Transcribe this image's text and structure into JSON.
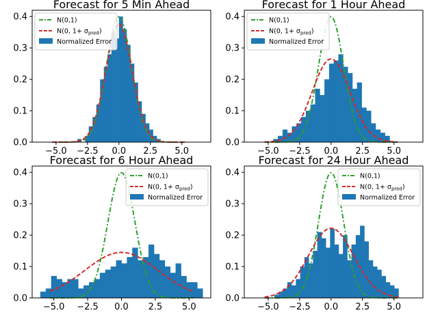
{
  "colors": {
    "hist": "#1f77b4",
    "standard_normal": "#2ca02c",
    "predicted_normal": "#d62728",
    "legend_border": "#cccccc"
  },
  "legend_labels": {
    "standard_normal": "N(0,1)",
    "predicted_normal": "N(0, 1+ σ_pred)",
    "histogram": "Normalized Error"
  },
  "chart_data": [
    {
      "type": "bar",
      "title": "Forecast for 5 Min Ahead",
      "xlim": [
        -6.9,
        7.3
      ],
      "ylim": [
        0,
        0.42
      ],
      "xticks": [
        -5.0,
        -2.5,
        0.0,
        2.5,
        5.0
      ],
      "xtick_labels": [
        "−5.0",
        "−2.5",
        "0.0",
        "2.5",
        "5.0"
      ],
      "yticks": [
        0.0,
        0.1,
        0.2,
        0.3,
        0.4
      ],
      "ytick_labels": [
        "0.0",
        "0.1",
        "0.2",
        "0.3",
        "0.4"
      ],
      "legend_position": "top-left",
      "bin_start": -3.3,
      "bin_width": 0.3,
      "values": [
        0.01,
        0.0,
        0.02,
        0.05,
        0.08,
        0.12,
        0.2,
        0.24,
        0.28,
        0.35,
        0.33,
        0.4,
        0.36,
        0.31,
        0.25,
        0.19,
        0.13,
        0.09,
        0.06,
        0.04,
        0.02,
        0.01
      ],
      "curves": [
        {
          "key": "standard_normal",
          "sigma": 1.0,
          "amplitude": 0.399
        },
        {
          "key": "predicted_normal",
          "sigma": 1.05,
          "amplitude": 0.375
        }
      ]
    },
    {
      "type": "bar",
      "title": "Forecast for 1 Hour Ahead",
      "xlim": [
        -6.9,
        7.3
      ],
      "ylim": [
        0,
        0.42
      ],
      "xticks": [
        -5.0,
        -2.5,
        0.0,
        2.5,
        5.0
      ],
      "xtick_labels": [
        "−5.0",
        "−2.5",
        "0.0",
        "2.5",
        "5.0"
      ],
      "yticks": [
        0.0,
        0.1,
        0.2,
        0.3,
        0.4
      ],
      "ytick_labels": [
        "0.0",
        "0.1",
        "0.2",
        "0.3",
        "0.4"
      ],
      "legend_position": "top-left",
      "bin_start": -4.6,
      "bin_width": 0.37,
      "values": [
        0.01,
        0.02,
        0.04,
        0.03,
        0.05,
        0.06,
        0.08,
        0.1,
        0.12,
        0.17,
        0.15,
        0.2,
        0.25,
        0.26,
        0.28,
        0.24,
        0.22,
        0.17,
        0.19,
        0.11,
        0.1,
        0.06,
        0.04,
        0.03,
        0.02
      ],
      "curves": [
        {
          "key": "standard_normal",
          "sigma": 1.0,
          "amplitude": 0.399
        },
        {
          "key": "predicted_normal",
          "sigma": 1.5,
          "amplitude": 0.265
        }
      ]
    },
    {
      "type": "bar",
      "title": "Forecast for 6 Hour Ahead",
      "xlim": [
        -6.6,
        6.6
      ],
      "ylim": [
        0,
        0.42
      ],
      "xticks": [
        -5.0,
        -2.5,
        0.0,
        2.5,
        5.0
      ],
      "xtick_labels": [
        "−5.0",
        "−2.5",
        "0.0",
        "2.5",
        "5.0"
      ],
      "yticks": [
        0.0,
        0.1,
        0.2,
        0.3,
        0.4
      ],
      "ytick_labels": [
        "0.0",
        "0.1",
        "0.2",
        "0.3",
        "0.4"
      ],
      "legend_position": "top-right",
      "bin_start": -6.0,
      "bin_width": 0.4,
      "values": [
        0.02,
        0.03,
        0.07,
        0.06,
        0.05,
        0.06,
        0.06,
        0.03,
        0.04,
        0.05,
        0.06,
        0.08,
        0.09,
        0.1,
        0.12,
        0.11,
        0.13,
        0.16,
        0.12,
        0.13,
        0.17,
        0.14,
        0.12,
        0.1,
        0.08,
        0.11,
        0.07,
        0.05,
        0.05,
        0.03
      ],
      "curves": [
        {
          "key": "standard_normal",
          "sigma": 1.0,
          "amplitude": 0.399
        },
        {
          "key": "predicted_normal",
          "sigma": 2.7,
          "amplitude": 0.145
        }
      ]
    },
    {
      "type": "bar",
      "title": "Forecast for 24 Hour Ahead",
      "xlim": [
        -6.9,
        7.3
      ],
      "ylim": [
        0,
        0.42
      ],
      "xticks": [
        -5.0,
        -2.5,
        0.0,
        2.5,
        5.0
      ],
      "xtick_labels": [
        "−5.0",
        "−2.5",
        "0.0",
        "2.5",
        "5.0"
      ],
      "yticks": [
        0.0,
        0.1,
        0.2,
        0.3,
        0.4
      ],
      "ytick_labels": [
        "0.0",
        "0.1",
        "0.2",
        "0.3",
        "0.4"
      ],
      "legend_position": "top-right",
      "bin_start": -4.5,
      "bin_width": 0.34,
      "values": [
        0.01,
        0.02,
        0.03,
        0.05,
        0.04,
        0.06,
        0.1,
        0.13,
        0.11,
        0.15,
        0.21,
        0.19,
        0.16,
        0.22,
        0.17,
        0.14,
        0.2,
        0.12,
        0.17,
        0.2,
        0.23,
        0.18,
        0.12,
        0.1,
        0.09,
        0.07,
        0.05,
        0.04,
        0.03
      ],
      "curves": [
        {
          "key": "standard_normal",
          "sigma": 1.0,
          "amplitude": 0.399
        },
        {
          "key": "predicted_normal",
          "sigma": 1.8,
          "amplitude": 0.222
        }
      ]
    }
  ]
}
